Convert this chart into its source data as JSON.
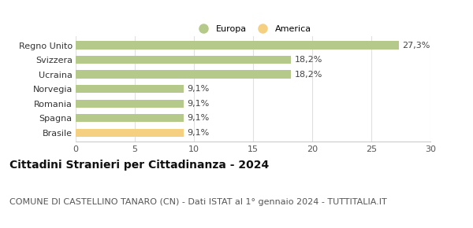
{
  "categories": [
    "Brasile",
    "Spagna",
    "Romania",
    "Norvegia",
    "Ucraina",
    "Svizzera",
    "Regno Unito"
  ],
  "values": [
    9.1,
    9.1,
    9.1,
    9.1,
    18.2,
    18.2,
    27.3
  ],
  "labels": [
    "9,1%",
    "9,1%",
    "9,1%",
    "9,1%",
    "18,2%",
    "18,2%",
    "27,3%"
  ],
  "colors": [
    "#f5d080",
    "#b5c98a",
    "#b5c98a",
    "#b5c98a",
    "#b5c98a",
    "#b5c98a",
    "#b5c98a"
  ],
  "legend": [
    {
      "label": "Europa",
      "color": "#b5c98a"
    },
    {
      "label": "America",
      "color": "#f5d080"
    }
  ],
  "xlim": [
    0,
    30
  ],
  "xticks": [
    0,
    5,
    10,
    15,
    20,
    25,
    30
  ],
  "title": "Cittadini Stranieri per Cittadinanza - 2024",
  "subtitle": "COMUNE DI CASTELLINO TANARO (CN) - Dati ISTAT al 1° gennaio 2024 - TUTTITALIA.IT",
  "title_fontsize": 10,
  "subtitle_fontsize": 8,
  "label_fontsize": 8,
  "tick_fontsize": 8,
  "bar_height": 0.55,
  "background_color": "#ffffff"
}
